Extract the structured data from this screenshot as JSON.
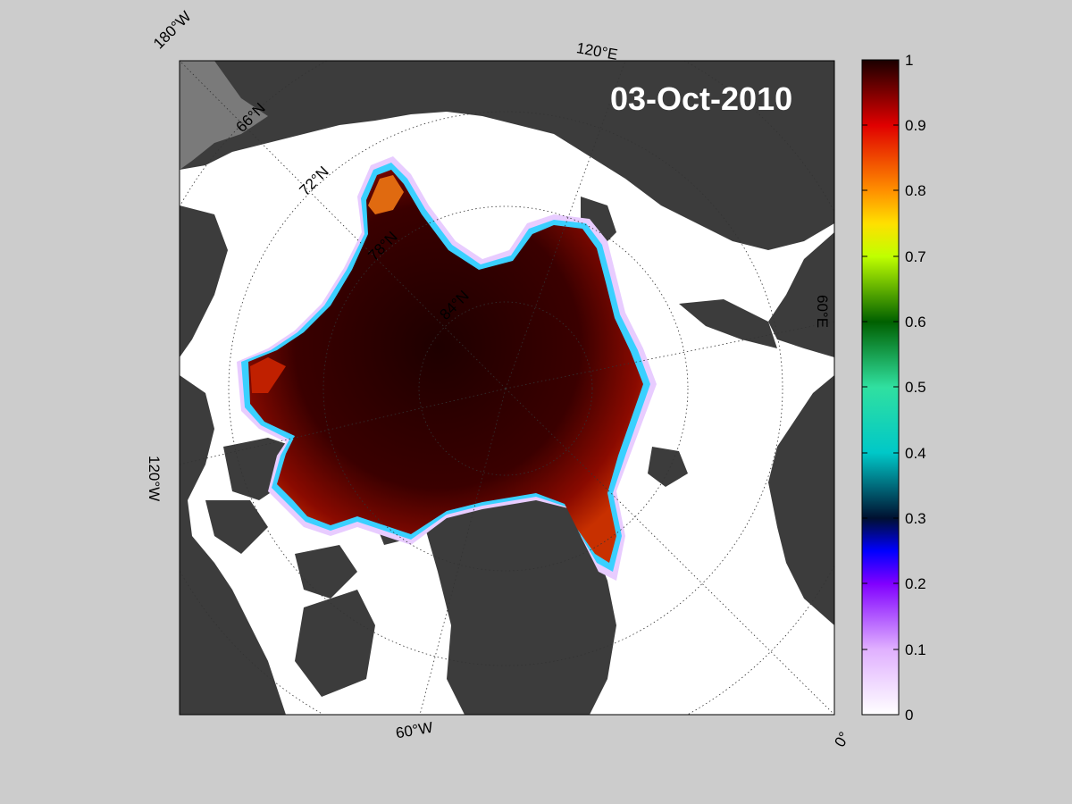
{
  "map": {
    "date_label": "03-Oct-2010",
    "lon_labels": [
      "180°W",
      "120°E",
      "60°E",
      "0°",
      "60°W",
      "120°W"
    ],
    "lat_labels": [
      "66°N",
      "72°N",
      "78°N",
      "84°N"
    ]
  },
  "colorbar": {
    "ticks": [
      "1",
      "0.9",
      "0.8",
      "0.7",
      "0.6",
      "0.5",
      "0.4",
      "0.3",
      "0.2",
      "0.1",
      "0"
    ],
    "min": 0,
    "max": 1
  },
  "colors": {
    "background": "#cccccc",
    "land": "#3c3c3c",
    "open_water": "#ffffff",
    "ice_high": "#2a0000"
  }
}
